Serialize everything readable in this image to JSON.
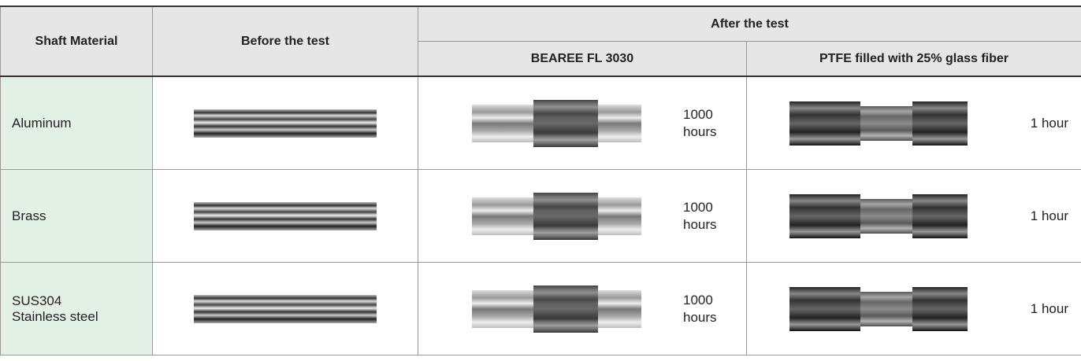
{
  "table": {
    "headers": {
      "shaft_material": "Shaft Material",
      "before": "Before the test",
      "after": "After the test",
      "bearee": "BEAREE FL 3030",
      "ptfe": "PTFE filled with 25% glass fiber"
    },
    "rows": [
      {
        "material": "Aluminum",
        "bearee_time": "1000\nhours",
        "ptfe_time": "1 hour"
      },
      {
        "material": "Brass",
        "bearee_time": "1000\nhours",
        "ptfe_time": "1 hour"
      },
      {
        "material": "SUS304\nStainless steel",
        "bearee_time": "1000\nhours",
        "ptfe_time": "1 hour"
      }
    ]
  }
}
